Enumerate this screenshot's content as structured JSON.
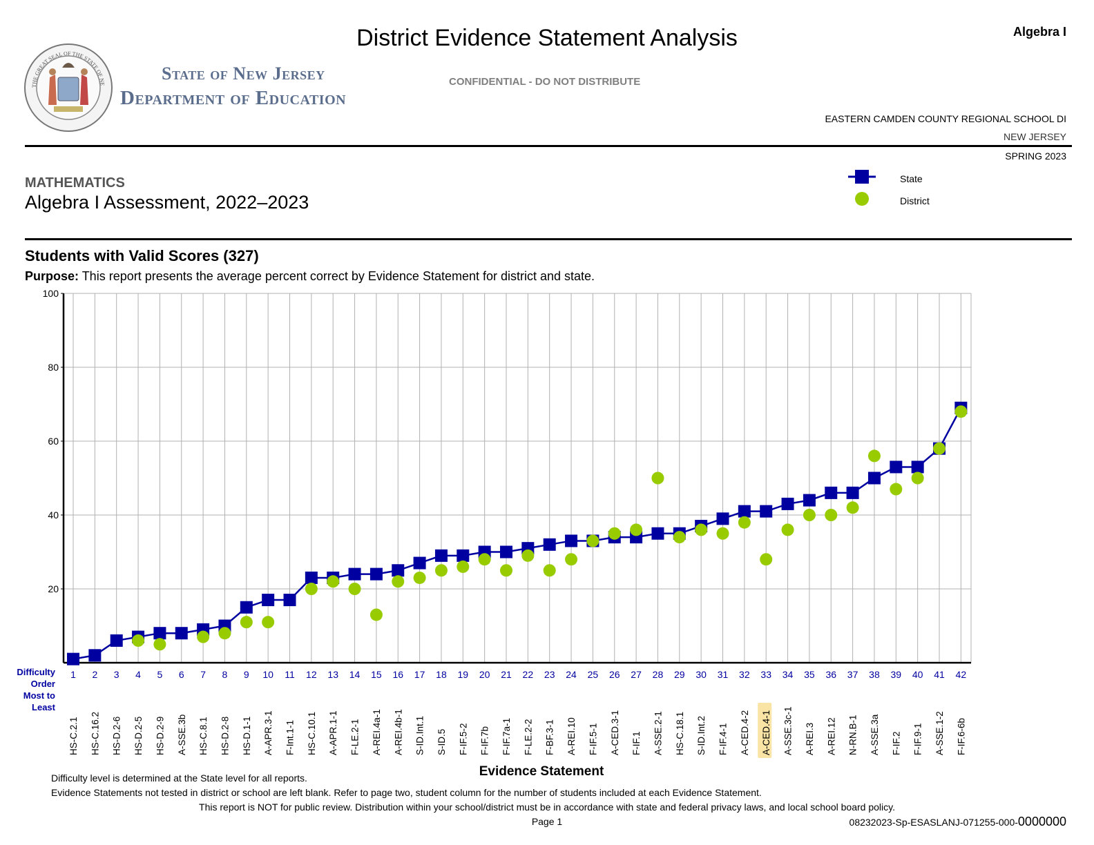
{
  "header": {
    "title": "District Evidence Statement Analysis",
    "subject_short": "Algebra I",
    "dept_line1": "State of New Jersey",
    "dept_line2": "Department of Education",
    "seal_text": "THE GREAT SEAL OF THE STATE OF NEW JERSEY",
    "confidential": "CONFIDENTIAL - DO NOT DISTRIBUTE",
    "district": "EASTERN CAMDEN COUNTY REGIONAL SCHOOL DI",
    "state": "NEW JERSEY",
    "term": "SPRING 2023"
  },
  "section": {
    "subject": "MATHEMATICS",
    "assessment": "Algebra I Assessment, 2022–2023",
    "valid_scores": "Students with Valid Scores (327)",
    "purpose_label": "Purpose:",
    "purpose_text": " This report presents the average percent correct by Evidence Statement for district and state."
  },
  "legend": {
    "state": "State",
    "district": "District"
  },
  "colors": {
    "state": "#0000a0",
    "district": "#99cc00",
    "highlight": "#f9e4a6"
  },
  "chart_data": {
    "type": "line",
    "title": "",
    "ylim": [
      0,
      100
    ],
    "yticks": [
      20,
      40,
      60,
      80,
      100
    ],
    "grid": true,
    "legend_position": "top-right",
    "xlabel": "Evidence Statement",
    "difficulty_label": [
      "Difficulty",
      "Order",
      "Most to",
      "Least"
    ],
    "order": [
      1,
      2,
      3,
      4,
      5,
      6,
      7,
      8,
      9,
      10,
      11,
      12,
      13,
      14,
      15,
      16,
      17,
      18,
      19,
      20,
      21,
      22,
      23,
      24,
      25,
      26,
      27,
      28,
      29,
      30,
      31,
      32,
      33,
      34,
      35,
      36,
      37,
      38,
      39,
      40,
      41,
      42
    ],
    "categories": [
      "HS-C.2.1",
      "HS-C.16.2",
      "HS-D.2-6",
      "HS-D.2-5",
      "HS-D.2-9",
      "A-SSE.3b",
      "HS-C.8.1",
      "HS-D.2-8",
      "HS-D.1-1",
      "A-APR.3-1",
      "F-Int.1-1",
      "HS-C.10.1",
      "A-APR.1-1",
      "F-LE.2-1",
      "A-REI.4a-1",
      "A-REI.4b-1",
      "S-ID.Int.1",
      "S-ID.5",
      "F-IF.5-2",
      "F-IF.7b",
      "F-IF.7a-1",
      "F-LE.2-2",
      "F-BF.3-1",
      "A-REI.10",
      "F-IF.5-1",
      "A-CED.3-1",
      "F-IF.1",
      "A-SSE.2-1",
      "HS-C.18.1",
      "S-ID.Int.2",
      "F-IF.4-1",
      "A-CED.4-2",
      "A-CED.4-1",
      "A-SSE.3c-1",
      "A-REI.3",
      "A-REI.12",
      "N-RN.B-1",
      "A-SSE.3a",
      "F-IF.2",
      "F-IF.9-1",
      "A-SSE.1-2",
      "F-IF.6-6b"
    ],
    "highlight_category": "A-CED.4-1",
    "series": [
      {
        "name": "State",
        "marker": "square",
        "line": true,
        "values": [
          1,
          2,
          6,
          7,
          8,
          8,
          9,
          10,
          15,
          17,
          17,
          23,
          23,
          24,
          24,
          25,
          27,
          29,
          29,
          30,
          30,
          31,
          32,
          33,
          33,
          34,
          34,
          35,
          35,
          37,
          39,
          41,
          41,
          43,
          44,
          46,
          46,
          50,
          53,
          53,
          58,
          69
        ]
      },
      {
        "name": "District",
        "marker": "circle",
        "line": false,
        "values": [
          null,
          null,
          null,
          6,
          5,
          null,
          7,
          8,
          11,
          11,
          null,
          20,
          22,
          20,
          13,
          22,
          23,
          25,
          26,
          28,
          25,
          29,
          25,
          28,
          33,
          35,
          36,
          50,
          34,
          36,
          35,
          38,
          28,
          36,
          40,
          40,
          42,
          56,
          47,
          50,
          58,
          68
        ]
      }
    ]
  },
  "footer": {
    "line1": "Difficulty level is determined at the State level for all reports.",
    "line2": "Evidence Statements not tested in district or school are left blank. Refer to page two, student column for the number of students included at each Evidence Statement.",
    "line3": "This report is NOT for public review. Distribution within your school/district must be in accordance with state and federal privacy laws, and local school board policy.",
    "page": "Page 1",
    "report_id": "08232023-Sp-ESASLANJ-071255-000-",
    "report_suffix": "0000000"
  }
}
